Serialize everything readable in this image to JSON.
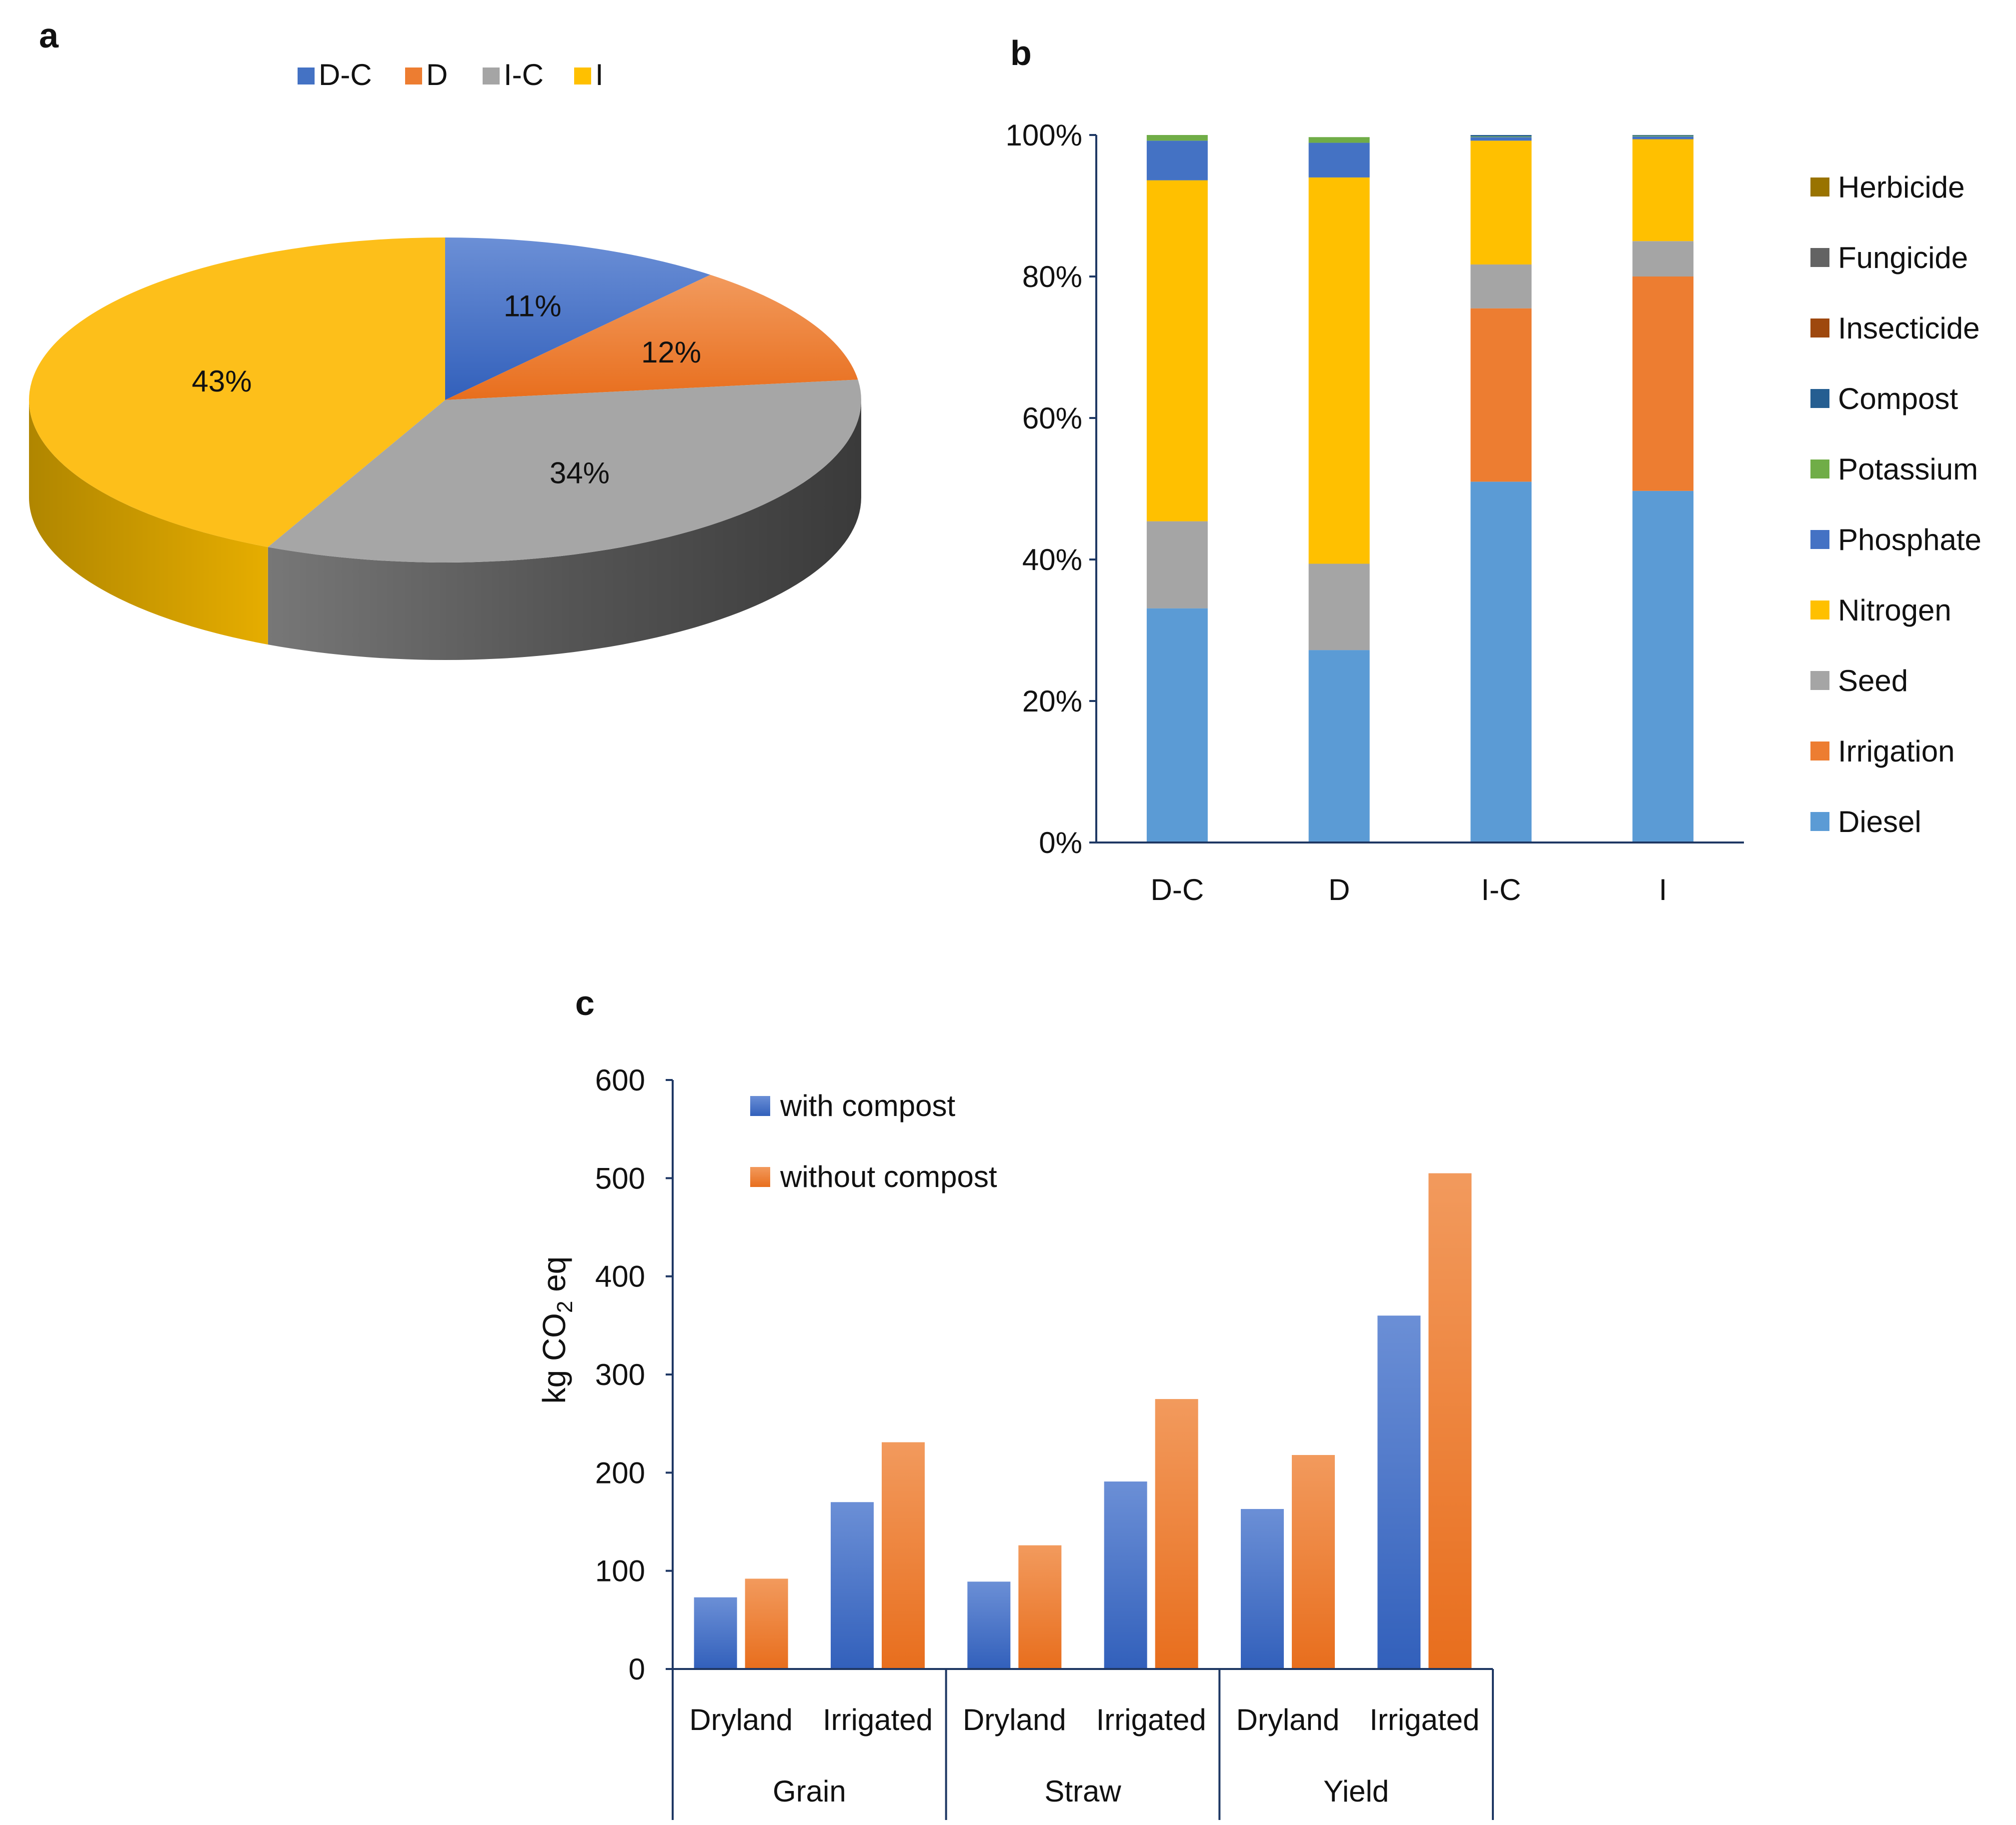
{
  "colors": {
    "blue": "#4472c4",
    "orange": "#ed7d31",
    "gray": "#a5a5a5",
    "yellow": "#ffc000",
    "lightblue": "#5b9bd5",
    "green": "#70ad47",
    "darkblue": "#255e91",
    "brown": "#9e480e",
    "darkgray": "#636363",
    "olive": "#997300",
    "axis": "#1f3864"
  },
  "chart_data": [
    {
      "panel": "a",
      "type": "pie",
      "legend_position": "top",
      "categories": [
        "D-C",
        "D",
        "I-C",
        "I"
      ],
      "values": [
        11,
        12,
        34,
        43
      ],
      "labels": [
        "11%",
        "12%",
        "34%",
        "43%"
      ],
      "colors": [
        "#4472c4",
        "#ed7d31",
        "#a5a5a5",
        "#ffc000"
      ]
    },
    {
      "panel": "b",
      "type": "bar",
      "stacked": true,
      "percent": true,
      "legend_position": "right",
      "categories": [
        "D-C",
        "D",
        "I-C",
        "I"
      ],
      "yticks": [
        "0%",
        "20%",
        "40%",
        "60%",
        "80%",
        "100%"
      ],
      "ylim": [
        0,
        100
      ],
      "series": [
        {
          "name": "Diesel",
          "color": "#5b9bd5",
          "values": [
            33.1,
            27.2,
            51.0,
            49.7
          ]
        },
        {
          "name": "Irrigation",
          "color": "#ed7d31",
          "values": [
            0,
            0,
            24.5,
            30.3
          ]
        },
        {
          "name": "Seed",
          "color": "#a5a5a5",
          "values": [
            12.3,
            12.2,
            6.2,
            5.0
          ]
        },
        {
          "name": "Nitrogen",
          "color": "#ffc000",
          "values": [
            48.2,
            54.6,
            17.5,
            14.4
          ]
        },
        {
          "name": "Phosphate",
          "color": "#4472c4",
          "values": [
            5.6,
            4.9,
            0.5,
            0.4
          ]
        },
        {
          "name": "Potassium",
          "color": "#70ad47",
          "values": [
            0.8,
            0.8,
            0.1,
            0.1
          ]
        },
        {
          "name": "Compost",
          "color": "#255e91",
          "values": [
            0,
            0,
            0.2,
            0.1
          ]
        },
        {
          "name": "Insecticide",
          "color": "#9e480e",
          "values": [
            0,
            0,
            0,
            0
          ]
        },
        {
          "name": "Fungicide",
          "color": "#636363",
          "values": [
            0,
            0,
            0,
            0
          ]
        },
        {
          "name": "Herbicide",
          "color": "#997300",
          "values": [
            0,
            0,
            0,
            0
          ]
        }
      ],
      "legend_order": [
        "Herbicide",
        "Fungicide",
        "Insecticide",
        "Compost",
        "Potassium",
        "Phosphate",
        "Nitrogen",
        "Seed",
        "Irrigation",
        "Diesel"
      ]
    },
    {
      "panel": "c",
      "type": "bar",
      "legend_position": "top-left",
      "ylabel_main": "kg CO",
      "ylabel_sub": "2",
      "ylabel_tail": " eq",
      "ylim": [
        0,
        600
      ],
      "yticks": [
        "0",
        "100",
        "200",
        "300",
        "400",
        "500",
        "600"
      ],
      "groups": [
        "Grain",
        "Straw",
        "Yield"
      ],
      "categories": [
        "Dryland",
        "Irrigated",
        "Dryland",
        "Irrigated",
        "Dryland",
        "Irrigated"
      ],
      "series": [
        {
          "name": "with compost",
          "color": "#4472c4",
          "values": [
            73,
            170,
            89,
            191,
            163,
            360
          ]
        },
        {
          "name": "without compost",
          "color": "#ed7d31",
          "values": [
            92,
            231,
            126,
            275,
            218,
            505
          ]
        }
      ]
    }
  ],
  "panel_labels": {
    "a": "a",
    "b": "b",
    "c": "c"
  }
}
